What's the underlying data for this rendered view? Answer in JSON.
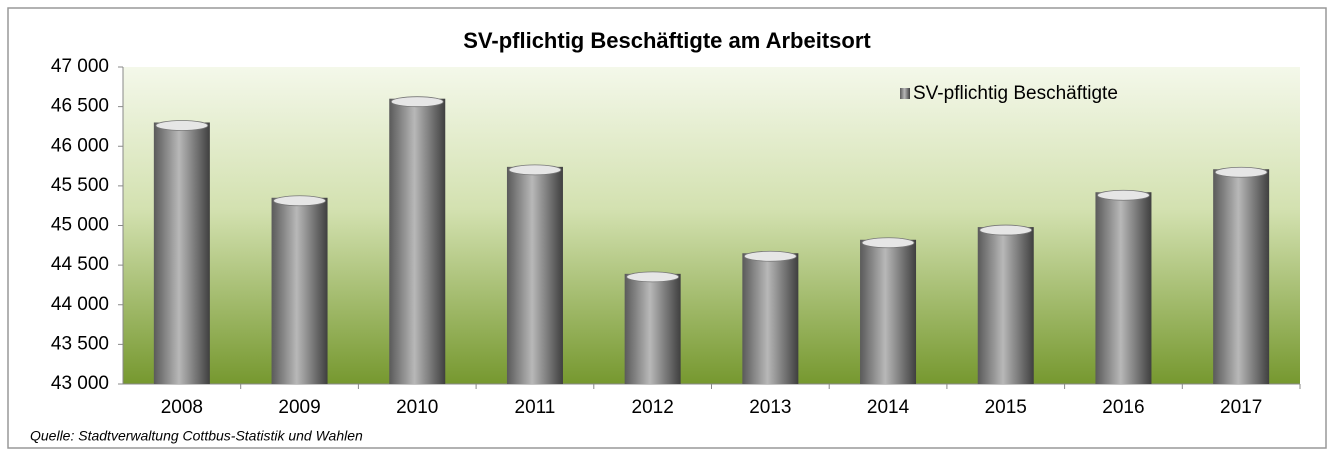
{
  "chart_data": {
    "type": "bar",
    "title": "SV-pflichtig Beschäftigte am Arbeitsort",
    "source": "Quelle: Stadtverwaltung Cottbus-Statistik und Wahlen",
    "categories": [
      "2008",
      "2009",
      "2010",
      "2011",
      "2012",
      "2013",
      "2014",
      "2015",
      "2016",
      "2017"
    ],
    "series": [
      {
        "name": "SV-pflichtig Beschäftigte",
        "color": "#b8b8b8",
        "values": [
          46300,
          45350,
          46600,
          45740,
          44390,
          44650,
          44820,
          44980,
          45420,
          45710
        ]
      }
    ],
    "ylim": [
      43000,
      47000
    ],
    "yticks": [
      {
        "value": 43000,
        "label": "43 000"
      },
      {
        "value": 43500,
        "label": "43 500"
      },
      {
        "value": 44000,
        "label": "44 000"
      },
      {
        "value": 44500,
        "label": "44 500"
      },
      {
        "value": 45000,
        "label": "45 000"
      },
      {
        "value": 45500,
        "label": "45 500"
      },
      {
        "value": 46000,
        "label": "46 000"
      },
      {
        "value": 46500,
        "label": "46 500"
      },
      {
        "value": 47000,
        "label": "47 000"
      }
    ],
    "legend": "top-right"
  }
}
